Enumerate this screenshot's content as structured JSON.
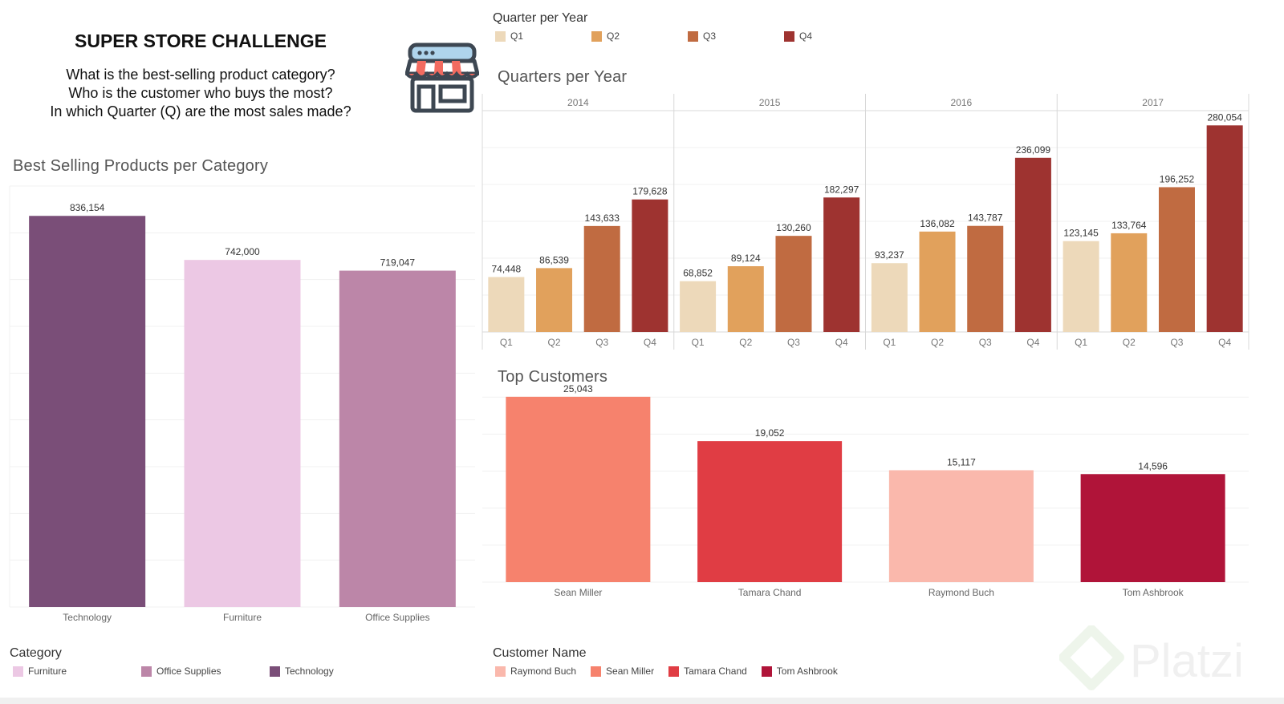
{
  "header": {
    "title": "SUPER STORE CHALLENGE",
    "questions": [
      "What is the best-selling product category?",
      "Who is the customer who buys the most?",
      "In which Quarter (Q) are the most sales made?"
    ]
  },
  "watermark": {
    "text": "Platzi"
  },
  "colors": {
    "quarters": [
      "#EDD9BA",
      "#E1A15C",
      "#C06B41",
      "#9E3330"
    ],
    "categories": {
      "Technology": "#7A4E78",
      "Furniture": "#ECC8E4",
      "Office Supplies": "#BC86A8"
    },
    "customers": {
      "Sean Miller": "#F6826D",
      "Tamara Chand": "#E03D44",
      "Raymond Buch": "#FAB8AC",
      "Tom Ashbrook": "#B01439"
    }
  },
  "legends": {
    "quarter": {
      "title": "Quarter per Year",
      "items": [
        "Q1",
        "Q2",
        "Q3",
        "Q4"
      ]
    },
    "category": {
      "title": "Category",
      "items": [
        "Furniture",
        "Office Supplies",
        "Technology"
      ]
    },
    "customer": {
      "title": "Customer Name",
      "items": [
        "Raymond Buch",
        "Sean Miller",
        "Tamara Chand",
        "Tom Ashbrook"
      ]
    }
  },
  "chart_data": [
    {
      "id": "category",
      "type": "bar",
      "title": "Best Selling Products per Category",
      "categories": [
        "Technology",
        "Furniture",
        "Office Supplies"
      ],
      "values": [
        836154,
        742000,
        719047
      ],
      "labels": [
        "836,154",
        "742,000",
        "719,047"
      ],
      "ylim": [
        0,
        900000
      ],
      "grid": true
    },
    {
      "id": "quarters",
      "type": "bar",
      "title": "Quarters per Year",
      "groups": [
        "2014",
        "2015",
        "2016",
        "2017"
      ],
      "categories": [
        "Q1",
        "Q2",
        "Q3",
        "Q4"
      ],
      "series": [
        {
          "name": "2014",
          "values": [
            74448,
            86539,
            143633,
            179628
          ],
          "labels": [
            "74,448",
            "86,539",
            "143,633",
            "179,628"
          ]
        },
        {
          "name": "2015",
          "values": [
            68852,
            89124,
            130260,
            182297
          ],
          "labels": [
            "68,852",
            "89,124",
            "130,260",
            "182,297"
          ]
        },
        {
          "name": "2016",
          "values": [
            93237,
            136082,
            143787,
            236099
          ],
          "labels": [
            "93,237",
            "136,082",
            "143,787",
            "236,099"
          ]
        },
        {
          "name": "2017",
          "values": [
            123145,
            133764,
            196252,
            280054
          ],
          "labels": [
            "123,145",
            "133,764",
            "196,252",
            "280,054"
          ]
        }
      ],
      "ylim": [
        0,
        300000
      ],
      "grid": true
    },
    {
      "id": "customers",
      "type": "bar",
      "title": "Top Customers",
      "categories": [
        "Sean Miller",
        "Tamara Chand",
        "Raymond Buch",
        "Tom Ashbrook"
      ],
      "values": [
        25043,
        19052,
        15117,
        14596
      ],
      "labels": [
        "25,043",
        "19,052",
        "15,117",
        "14,596"
      ],
      "ylim": [
        0,
        26000
      ],
      "grid": true
    }
  ]
}
